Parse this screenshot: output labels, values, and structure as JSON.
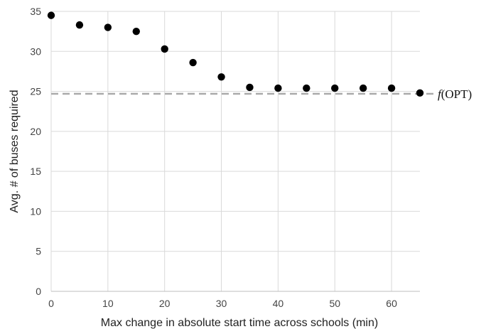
{
  "chart_data": {
    "type": "scatter",
    "xlabel": "Max change in absolute start time across schools (min)",
    "ylabel": "Avg. # of buses required",
    "xlim": [
      0,
      65
    ],
    "ylim": [
      0,
      35
    ],
    "x_ticks": [
      "0",
      "10",
      "20",
      "30",
      "40",
      "50",
      "60"
    ],
    "y_ticks": [
      "0",
      "5",
      "10",
      "15",
      "20",
      "25",
      "30",
      "35"
    ],
    "grid": true,
    "series": [
      {
        "x": [
          0,
          5,
          10,
          15,
          20,
          25,
          30,
          35,
          40,
          45,
          50,
          55,
          60,
          65
        ],
        "y": [
          34.5,
          33.3,
          33.0,
          32.5,
          30.3,
          28.6,
          26.8,
          25.5,
          25.4,
          25.4,
          25.4,
          25.4,
          25.4,
          24.8
        ],
        "color": "#000000"
      }
    ],
    "reference_line": {
      "y": 24.7,
      "label_italic": "f",
      "label_rest": "(OPT)",
      "color": "#aaaaaa",
      "style": "dashed"
    }
  }
}
